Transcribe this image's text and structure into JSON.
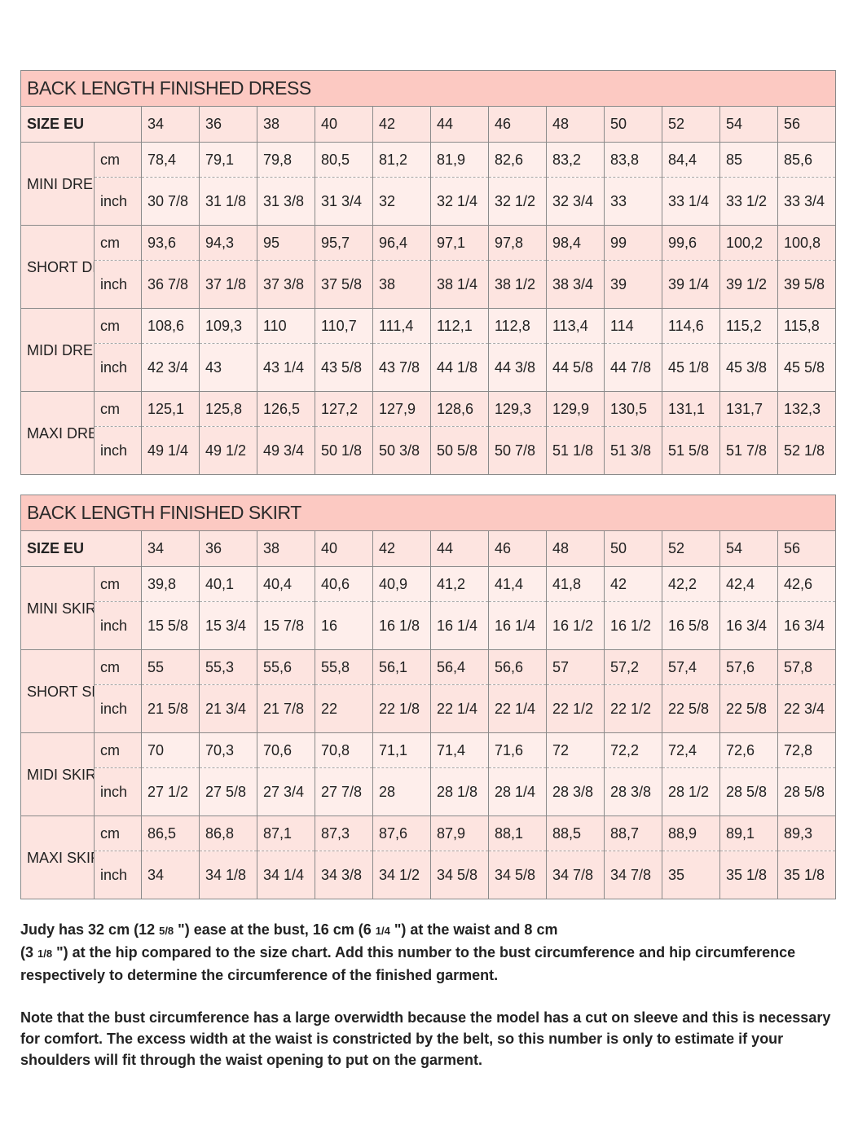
{
  "sizes": [
    "34",
    "36",
    "38",
    "40",
    "42",
    "44",
    "46",
    "48",
    "50",
    "52",
    "54",
    "56"
  ],
  "dress_table": {
    "title": "BACK LENGTH FINISHED DRESS",
    "size_label": "SIZE EU",
    "rows": [
      {
        "name": "MINI DRESS",
        "cm_label": "cm",
        "inch_label": "inch",
        "cm": [
          "78,4",
          "79,1",
          "79,8",
          "80,5",
          "81,2",
          "81,9",
          "82,6",
          "83,2",
          "83,8",
          "84,4",
          "85",
          "85,6"
        ],
        "inch": [
          "30 7/8",
          "31 1/8",
          "31 3/8",
          "31 3/4",
          "32",
          "32 1/4",
          "32 1/2",
          "32 3/4",
          "33",
          "33 1/4",
          "33 1/2",
          "33 3/4"
        ]
      },
      {
        "name": "SHORT DRESS",
        "cm_label": "cm",
        "inch_label": "inch",
        "cm": [
          "93,6",
          "94,3",
          "95",
          "95,7",
          "96,4",
          "97,1",
          "97,8",
          "98,4",
          "99",
          "99,6",
          "100,2",
          "100,8"
        ],
        "inch": [
          "36 7/8",
          "37 1/8",
          "37 3/8",
          "37 5/8",
          "38",
          "38 1/4",
          "38 1/2",
          "38 3/4",
          "39",
          "39 1/4",
          "39 1/2",
          "39 5/8"
        ]
      },
      {
        "name": "MIDI DRESS",
        "cm_label": "cm",
        "inch_label": "inch",
        "cm": [
          "108,6",
          "109,3",
          "110",
          "110,7",
          "111,4",
          "112,1",
          "112,8",
          "113,4",
          "114",
          "114,6",
          "115,2",
          "115,8"
        ],
        "inch": [
          "42 3/4",
          "43",
          "43 1/4",
          "43 5/8",
          "43 7/8",
          "44 1/8",
          "44 3/8",
          "44 5/8",
          "44 7/8",
          "45 1/8",
          "45 3/8",
          "45 5/8"
        ]
      },
      {
        "name": "MAXI DRESS",
        "cm_label": "cm",
        "inch_label": "inch",
        "cm": [
          "125,1",
          "125,8",
          "126,5",
          "127,2",
          "127,9",
          "128,6",
          "129,3",
          "129,9",
          "130,5",
          "131,1",
          "131,7",
          "132,3"
        ],
        "inch": [
          "49 1/4",
          "49 1/2",
          "49 3/4",
          "50 1/8",
          "50 3/8",
          "50 5/8",
          "50 7/8",
          "51 1/8",
          "51 3/8",
          "51 5/8",
          "51 7/8",
          "52 1/8"
        ]
      }
    ]
  },
  "skirt_table": {
    "title": "BACK LENGTH FINISHED SKIRT",
    "size_label": "SIZE EU",
    "rows": [
      {
        "name": "MINI SKIRT",
        "cm_label": "cm",
        "inch_label": "inch",
        "cm": [
          "39,8",
          "40,1",
          "40,4",
          "40,6",
          "40,9",
          "41,2",
          "41,4",
          "41,8",
          "42",
          "42,2",
          "42,4",
          "42,6"
        ],
        "inch": [
          "15 5/8",
          "15 3/4",
          "15 7/8",
          "16",
          "16 1/8",
          "16 1/4",
          "16 1/4",
          "16 1/2",
          "16 1/2",
          "16 5/8",
          "16 3/4",
          "16 3/4"
        ]
      },
      {
        "name": "SHORT SKIRT",
        "cm_label": "cm",
        "inch_label": "inch",
        "cm": [
          "55",
          "55,3",
          "55,6",
          "55,8",
          "56,1",
          "56,4",
          "56,6",
          "57",
          "57,2",
          "57,4",
          "57,6",
          "57,8"
        ],
        "inch": [
          "21 5/8",
          "21 3/4",
          "21 7/8",
          "22",
          "22 1/8",
          "22 1/4",
          "22 1/4",
          "22 1/2",
          "22 1/2",
          "22 5/8",
          "22 5/8",
          "22 3/4"
        ]
      },
      {
        "name": "MIDI SKIRT",
        "cm_label": "cm",
        "inch_label": "inch",
        "cm": [
          "70",
          "70,3",
          "70,6",
          "70,8",
          "71,1",
          "71,4",
          "71,6",
          "72",
          "72,2",
          "72,4",
          "72,6",
          "72,8"
        ],
        "inch": [
          "27 1/2",
          "27 5/8",
          "27 3/4",
          "27 7/8",
          "28",
          "28 1/8",
          "28 1/4",
          "28 3/8",
          "28 3/8",
          "28 1/2",
          "28 5/8",
          "28 5/8"
        ]
      },
      {
        "name": "MAXI SKIRT",
        "cm_label": "cm",
        "inch_label": "inch",
        "cm": [
          "86,5",
          "86,8",
          "87,1",
          "87,3",
          "87,6",
          "87,9",
          "88,1",
          "88,5",
          "88,7",
          "88,9",
          "89,1",
          "89,3"
        ],
        "inch": [
          "34",
          "34 1/8",
          "34 1/4",
          "34 3/8",
          "34 1/2",
          "34 5/8",
          "34 5/8",
          "34 7/8",
          "34 7/8",
          "35",
          "35 1/8",
          "35 1/8"
        ]
      }
    ]
  },
  "notes": {
    "p1_a": "Judy has 32 cm (12 ",
    "p1_frac1": "5/8",
    "p1_b": " \") ease at the bust, 16 cm (6 ",
    "p1_frac2": "1/4",
    "p1_c": " \") at the waist and 8 cm",
    "p1_d": "(3 ",
    "p1_frac3": "1/8",
    "p1_e": " \") at the hip compared to the size chart. Add this number to the bust circumference and hip circumference respectively to determine the circumference of the finished garment.",
    "p2": "Note that the bust circumference has a large overwidth because the model has a cut on sleeve and this is necessary for comfort. The excess width at the waist is constricted by the belt, so this number is only to estimate if your shoulders will fit through the waist opening to put on the garment."
  },
  "colors": {
    "title_bg": "#fcc9c2",
    "cell_pink": "#fde4e0",
    "cell_light": "#feeeeb",
    "border": "#8a8a8a"
  }
}
